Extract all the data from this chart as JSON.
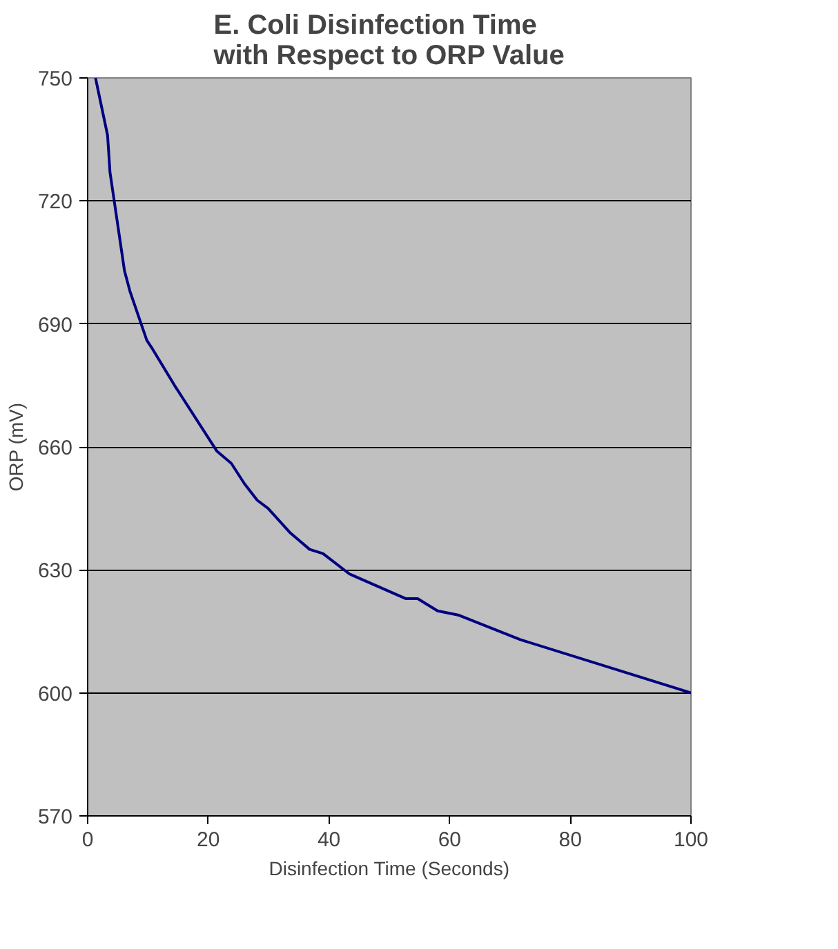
{
  "chart_data": {
    "type": "line",
    "title": "E. Coli Disinfection Time\nwith Respect to ORP Value",
    "xlabel": "Disinfection Time (Seconds)",
    "ylabel": "ORP (mV)",
    "x": [
      1.3,
      3.3,
      3.7,
      4.4,
      6.1,
      7,
      9.8,
      10.7,
      14.4,
      21.4,
      23.8,
      26,
      28.1,
      29.9,
      33.6,
      36.8,
      39,
      43.4,
      52.7,
      54.7,
      58,
      61.4,
      71.7,
      100
    ],
    "series": [
      {
        "color": "#000080",
        "values": [
          750,
          736,
          727,
          720,
          703,
          698,
          686,
          684,
          675,
          659,
          656,
          651,
          647,
          645,
          639,
          635,
          634,
          629,
          623,
          623,
          620,
          619,
          613,
          600
        ]
      }
    ],
    "xlim": [
      0,
      100
    ],
    "ylim": [
      570,
      750
    ],
    "xticks": [
      0,
      20,
      40,
      60,
      80,
      100
    ],
    "yticks": [
      570,
      600,
      630,
      660,
      690,
      720,
      750
    ],
    "grid": "y",
    "marker": "none",
    "line_style": "solid"
  }
}
